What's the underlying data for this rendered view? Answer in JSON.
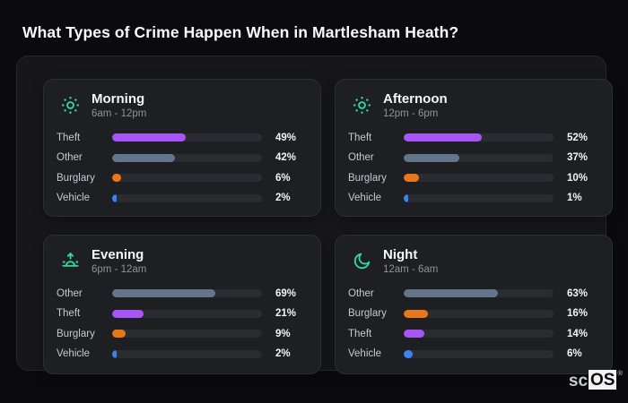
{
  "page_title": "What Types of Crime Happen When in Martlesham Heath?",
  "brand": {
    "prefix": "sc",
    "suffix": "OS",
    "reg": "®"
  },
  "category_colors": {
    "Theft": "#a855f7",
    "Other": "#64748b",
    "Burglary": "#e8761b",
    "Vehicle": "#3b82f6"
  },
  "icon_color": "#34d399",
  "chart_data": [
    {
      "type": "bar",
      "title": "Morning",
      "subtitle": "6am - 12pm",
      "icon": "sun-dots-icon",
      "categories": [
        "Theft",
        "Other",
        "Burglary",
        "Vehicle"
      ],
      "values": [
        49,
        42,
        6,
        2
      ],
      "value_labels": [
        "49%",
        "42%",
        "6%",
        "2%"
      ],
      "xlim": [
        0,
        100
      ],
      "unit": "%"
    },
    {
      "type": "bar",
      "title": "Afternoon",
      "subtitle": "12pm - 6pm",
      "icon": "sun-dots-icon",
      "categories": [
        "Theft",
        "Other",
        "Burglary",
        "Vehicle"
      ],
      "values": [
        52,
        37,
        10,
        1
      ],
      "value_labels": [
        "52%",
        "37%",
        "10%",
        "1%"
      ],
      "xlim": [
        0,
        100
      ],
      "unit": "%"
    },
    {
      "type": "bar",
      "title": "Evening",
      "subtitle": "6pm - 12am",
      "icon": "sunrise-icon",
      "categories": [
        "Other",
        "Theft",
        "Burglary",
        "Vehicle"
      ],
      "values": [
        69,
        21,
        9,
        2
      ],
      "value_labels": [
        "69%",
        "21%",
        "9%",
        "2%"
      ],
      "xlim": [
        0,
        100
      ],
      "unit": "%"
    },
    {
      "type": "bar",
      "title": "Night",
      "subtitle": "12am - 6am",
      "icon": "moon-icon",
      "categories": [
        "Other",
        "Burglary",
        "Theft",
        "Vehicle"
      ],
      "values": [
        63,
        16,
        14,
        6
      ],
      "value_labels": [
        "63%",
        "16%",
        "14%",
        "6%"
      ],
      "xlim": [
        0,
        100
      ],
      "unit": "%"
    }
  ]
}
